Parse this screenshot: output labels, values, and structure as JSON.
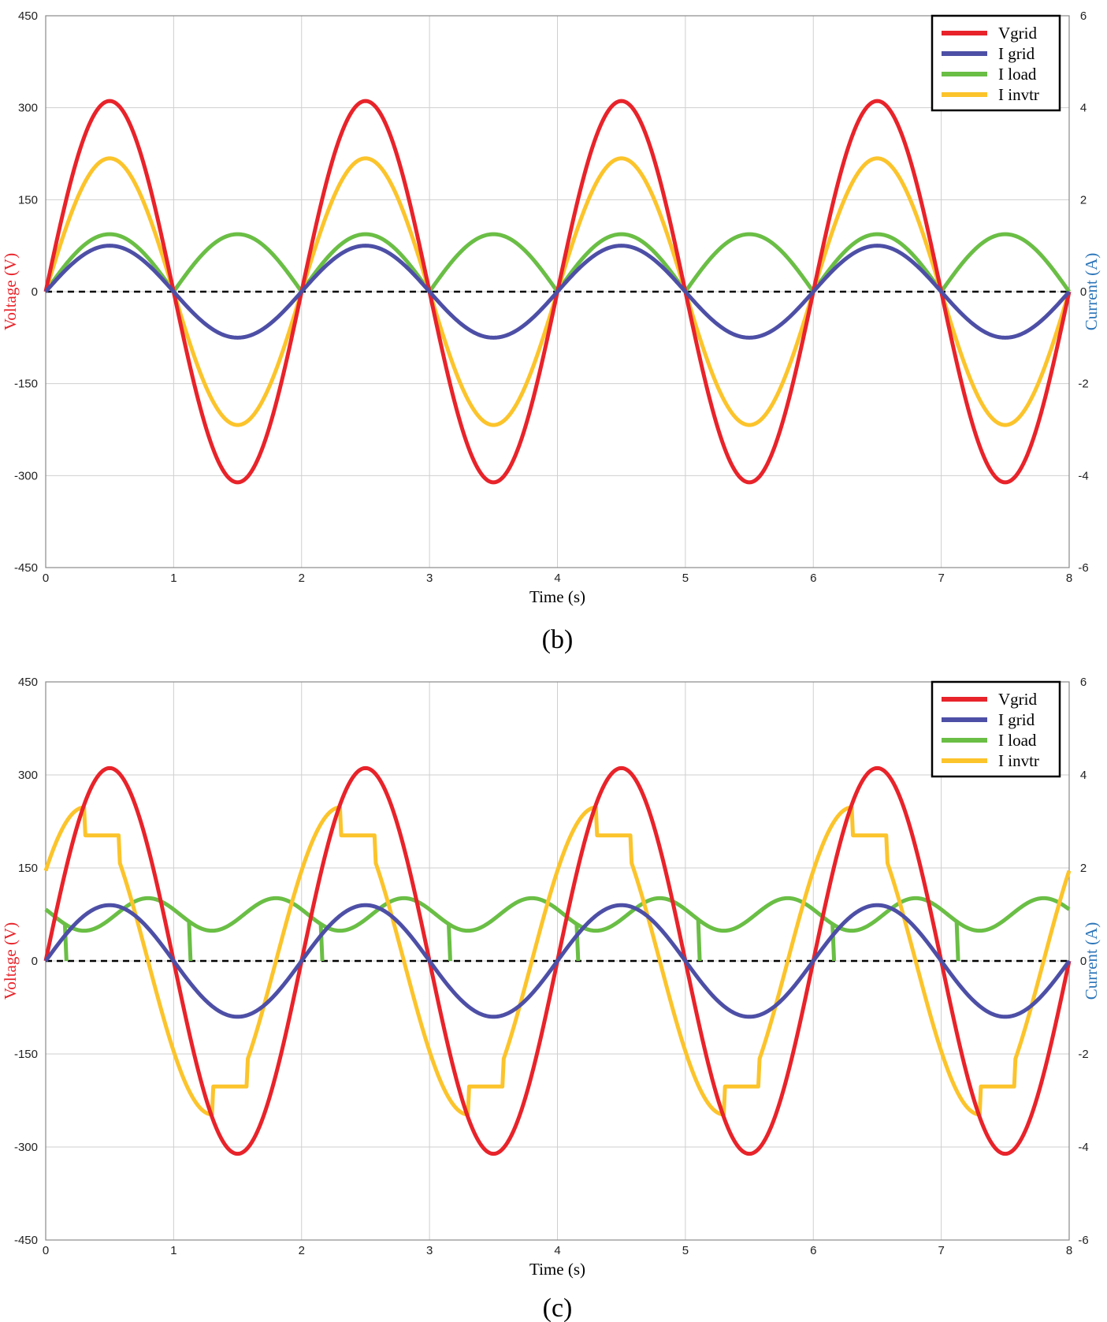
{
  "colors": {
    "vgrid": "#e8232a",
    "igrid": "#4d4fa6",
    "iload": "#6abe45",
    "iinvtr": "#fcc42b",
    "zero_line": "#000000",
    "voltage_label": "#e8232a",
    "current_label": "#2b75b8"
  },
  "chart_data": [
    {
      "type": "line",
      "caption": "(b)",
      "xlabel": "Time (s)",
      "ylabel_left": "Voltage (V)",
      "ylabel_right": "Current (A)",
      "xlim": [
        0,
        8
      ],
      "ylim_left": [
        -450,
        450
      ],
      "ylim_right": [
        -6,
        6
      ],
      "x_ticks": [
        "0",
        "1",
        "2",
        "3",
        "4",
        "5",
        "6",
        "7",
        "8"
      ],
      "y_ticks_left": [
        "450",
        "300",
        "150",
        "0",
        "-150",
        "-300",
        "-450"
      ],
      "y_ticks_right": [
        "6",
        "4",
        "2",
        "0",
        "-2",
        "-4",
        "-6"
      ],
      "grid": true,
      "legend_position": "top-right",
      "legend": [
        "Vgrid",
        "I grid",
        "I load",
        "I invtr"
      ],
      "series": [
        {
          "name": "Vgrid",
          "axis": "left",
          "shape": "sine",
          "amplitude": 311,
          "period": 2,
          "color_key": "vgrid"
        },
        {
          "name": "I grid",
          "axis": "right",
          "shape": "sine",
          "amplitude": 1.0,
          "period": 2,
          "color_key": "igrid"
        },
        {
          "name": "I load",
          "axis": "right",
          "shape": "rectified_sine",
          "amplitude": 1.25,
          "period": 2,
          "color_key": "iload"
        },
        {
          "name": "I invtr",
          "axis": "right",
          "shape": "sine",
          "amplitude": 2.9,
          "period": 2,
          "color_key": "iinvtr"
        }
      ]
    },
    {
      "type": "line",
      "caption": "(c)",
      "xlabel": "Time (s)",
      "ylabel_left": "Voltage (V)",
      "ylabel_right": "Current (A)",
      "xlim": [
        0,
        8
      ],
      "ylim_left": [
        -450,
        450
      ],
      "ylim_right": [
        -6,
        6
      ],
      "x_ticks": [
        "0",
        "1",
        "2",
        "3",
        "4",
        "5",
        "6",
        "7",
        "8"
      ],
      "y_ticks_left": [
        "450",
        "300",
        "150",
        "0",
        "-150",
        "-300",
        "-450"
      ],
      "y_ticks_right": [
        "6",
        "4",
        "2",
        "0",
        "-2",
        "-4",
        "-6"
      ],
      "grid": true,
      "legend_position": "top-right",
      "legend": [
        "Vgrid",
        "I grid",
        "I load",
        "I invtr"
      ],
      "series": [
        {
          "name": "Vgrid",
          "axis": "left",
          "shape": "sine",
          "amplitude": 311,
          "period": 2,
          "color_key": "vgrid"
        },
        {
          "name": "I grid",
          "axis": "right",
          "shape": "sine",
          "amplitude": 1.2,
          "period": 2,
          "color_key": "igrid"
        },
        {
          "name": "I load",
          "axis": "right",
          "shape": "nonlinear_load",
          "peak": 1.35,
          "valley": 0.65,
          "spike_times": [
            0.15,
            1.12,
            2.15,
            3.15,
            4.15,
            5.1,
            6.15,
            7.12
          ],
          "color_key": "iload"
        },
        {
          "name": "I invtr",
          "axis": "right",
          "shape": "stepped_sine",
          "amplitude": 3.3,
          "step_level": 2.7,
          "phase_lead": 0.2,
          "period": 2,
          "color_key": "iinvtr"
        }
      ]
    }
  ]
}
